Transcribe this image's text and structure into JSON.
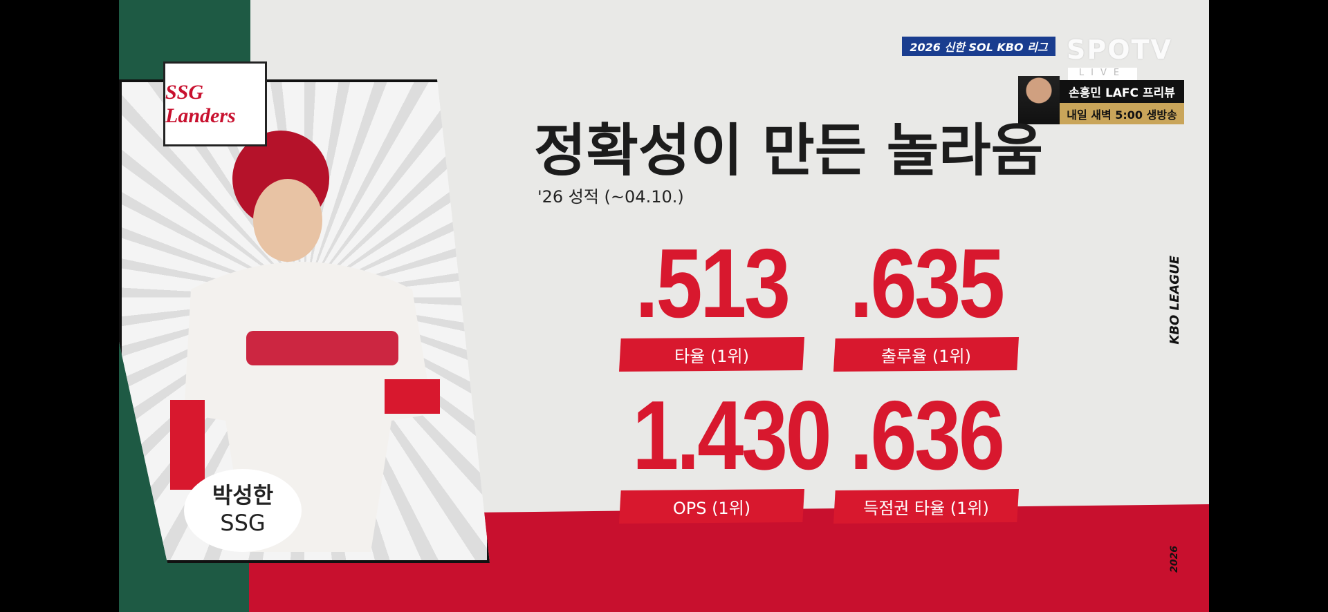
{
  "broadcast": {
    "league_badge": "2026 신한 SOL KBO 리그",
    "network": "SPOTV",
    "network_sub": "LIVE"
  },
  "promo": {
    "line1": "손흥민 LAFC 프리뷰",
    "line2": "내일 새벽 5:00 생방송"
  },
  "team_logo": "SSG Landers",
  "player": {
    "name": "박성한",
    "team": "SSG"
  },
  "title": "정확성이 만든 놀라움",
  "subtitle": "'26 성적 (~04.10.)",
  "stats": [
    {
      "value": ".513",
      "label": "타율 (1위)"
    },
    {
      "value": ".635",
      "label": "출루율 (1위)"
    },
    {
      "value": "1.430",
      "label": "OPS (1위)"
    },
    {
      "value": ".636",
      "label": "득점권 타율 (1위)"
    }
  ],
  "side_text": "KBO LEAGUE",
  "year_mark": "2026",
  "colors": {
    "accent_red": "#d8182e",
    "green": "#1e5a44",
    "badge_blue": "#1a3d8f",
    "gold": "#c9a55a"
  }
}
